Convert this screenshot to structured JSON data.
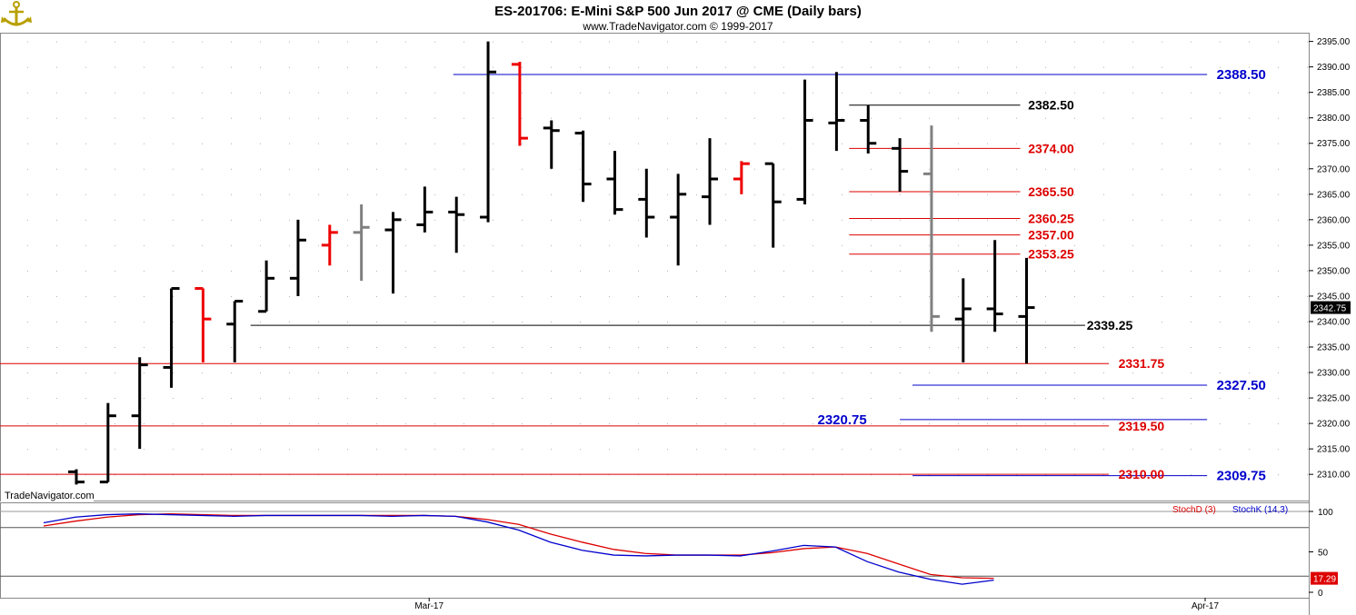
{
  "header": {
    "title": "ES-201706:  E-Mini S&P 500 Jun 2017 @ CME  (Daily bars)",
    "subtitle": "www.TradeNavigator.com © 1999-2017"
  },
  "watermark": "TradeNavigator.com",
  "colors": {
    "up_bar": "#000000",
    "down_bar": "#ee0000",
    "neutral_bar": "#808080",
    "red_level": "#dd0000",
    "blue_level": "#0000cc",
    "black_level": "#000000",
    "stoch_d": "#dd0000",
    "stoch_k": "#0000cc",
    "last_price_bg": "#000000",
    "stoch_value_bg": "#dd0000"
  },
  "price_axis": {
    "min": 2307,
    "max": 2396,
    "ticks": [
      "2395.00",
      "2390.00",
      "2385.00",
      "2380.00",
      "2375.00",
      "2370.00",
      "2365.00",
      "2360.00",
      "2355.00",
      "2350.00",
      "2345.00",
      "2340.00",
      "2335.00",
      "2330.00",
      "2325.00",
      "2320.00",
      "2315.00",
      "2310.00"
    ],
    "last_price_label": "2342.75"
  },
  "date_axis": {
    "labels": [
      {
        "text": "Mar-17",
        "bar": 12.0
      },
      {
        "text": "Apr-17",
        "bar": 36.5
      }
    ]
  },
  "annotations": [
    {
      "label": "2388.50",
      "price": 2388.5,
      "color": "blue",
      "from_bar": 11.9,
      "to_bar": 35.7,
      "label_bar": 36.0,
      "big": true
    },
    {
      "label": "2382.50",
      "price": 2382.5,
      "color": "black",
      "from_bar": 24.4,
      "to_bar": 29.8,
      "label_bar": 30.05,
      "big": false
    },
    {
      "label": "2374.00",
      "price": 2374.0,
      "color": "red",
      "from_bar": 24.4,
      "to_bar": 29.8,
      "label_bar": 30.05,
      "big": false
    },
    {
      "label": "2365.50",
      "price": 2365.5,
      "color": "red",
      "from_bar": 24.4,
      "to_bar": 29.8,
      "label_bar": 30.05,
      "big": false
    },
    {
      "label": "2360.25",
      "price": 2360.25,
      "color": "red",
      "from_bar": 24.4,
      "to_bar": 29.8,
      "label_bar": 30.05,
      "big": false
    },
    {
      "label": "2357.00",
      "price": 2357.0,
      "color": "red",
      "from_bar": 24.4,
      "to_bar": 29.8,
      "label_bar": 30.05,
      "big": false
    },
    {
      "label": "2353.25",
      "price": 2353.25,
      "color": "red",
      "from_bar": 24.4,
      "to_bar": 29.8,
      "label_bar": 30.05,
      "big": false
    },
    {
      "label": "2339.25",
      "price": 2339.25,
      "color": "black",
      "from_bar": 5.5,
      "to_bar": 31.85,
      "label_bar": 31.9,
      "big": false
    },
    {
      "label": "2331.75",
      "price": 2331.75,
      "color": "red",
      "from_bar": -2.6,
      "to_bar": 32.6,
      "label_bar": 32.9,
      "big": false
    },
    {
      "label": "2327.50",
      "price": 2327.5,
      "color": "blue",
      "from_bar": 26.4,
      "to_bar": 35.7,
      "label_bar": 36.0,
      "big": true
    },
    {
      "label": "2320.75",
      "price": 2320.75,
      "color": "blue",
      "from_bar": 26.0,
      "to_bar": 35.7,
      "label_bar": 23.4,
      "big": true
    },
    {
      "label": "2319.50",
      "price": 2319.5,
      "color": "red",
      "from_bar": -2.6,
      "to_bar": 32.6,
      "label_bar": 32.9,
      "big": false
    },
    {
      "label": "2310.00",
      "price": 2310.0,
      "color": "red",
      "from_bar": -2.6,
      "to_bar": 32.6,
      "label_bar": 32.9,
      "big": false
    },
    {
      "label": "2309.75",
      "price": 2309.75,
      "color": "blue",
      "from_bar": 26.4,
      "to_bar": 35.7,
      "label_bar": 36.0,
      "big": true
    }
  ],
  "chart_data": {
    "type": "ohlc",
    "title": "ES-201706:  E-Mini S&P 500 Jun 2017 @ CME  (Daily bars)",
    "bars": [
      {
        "o": 2310.5,
        "h": 2311.0,
        "l": 2308.0,
        "c": 2308.5,
        "color": "up"
      },
      {
        "o": 2308.5,
        "h": 2324.0,
        "l": 2308.5,
        "c": 2321.5,
        "color": "up"
      },
      {
        "o": 2321.5,
        "h": 2333.0,
        "l": 2315.0,
        "c": 2331.5,
        "color": "up"
      },
      {
        "o": 2331.0,
        "h": 2346.5,
        "l": 2327.0,
        "c": 2346.5,
        "color": "up"
      },
      {
        "o": 2346.5,
        "h": 2346.5,
        "l": 2332.0,
        "c": 2340.5,
        "color": "down"
      },
      {
        "o": 2339.5,
        "h": 2344.0,
        "l": 2332.0,
        "c": 2344.0,
        "color": "up"
      },
      {
        "o": 2342.0,
        "h": 2352.0,
        "l": 2342.0,
        "c": 2348.5,
        "color": "up"
      },
      {
        "o": 2348.5,
        "h": 2360.0,
        "l": 2345.0,
        "c": 2356.0,
        "color": "up"
      },
      {
        "o": 2355.0,
        "h": 2359.0,
        "l": 2351.0,
        "c": 2357.5,
        "color": "down"
      },
      {
        "o": 2357.5,
        "h": 2363.0,
        "l": 2348.0,
        "c": 2358.5,
        "color": "neutral"
      },
      {
        "o": 2358.0,
        "h": 2361.5,
        "l": 2345.5,
        "c": 2360.0,
        "color": "up"
      },
      {
        "o": 2359.0,
        "h": 2366.5,
        "l": 2357.5,
        "c": 2361.5,
        "color": "up"
      },
      {
        "o": 2361.5,
        "h": 2364.5,
        "l": 2353.5,
        "c": 2361.0,
        "color": "up"
      },
      {
        "o": 2360.5,
        "h": 2395.0,
        "l": 2359.5,
        "c": 2389.0,
        "color": "up"
      },
      {
        "o": 2390.5,
        "h": 2391.0,
        "l": 2374.5,
        "c": 2376.0,
        "color": "down"
      },
      {
        "o": 2378.0,
        "h": 2379.5,
        "l": 2370.0,
        "c": 2377.5,
        "color": "up"
      },
      {
        "o": 2377.0,
        "h": 2377.5,
        "l": 2363.5,
        "c": 2367.0,
        "color": "up"
      },
      {
        "o": 2368.0,
        "h": 2373.5,
        "l": 2361.0,
        "c": 2362.0,
        "color": "up"
      },
      {
        "o": 2364.0,
        "h": 2370.0,
        "l": 2356.5,
        "c": 2360.5,
        "color": "up"
      },
      {
        "o": 2360.5,
        "h": 2369.0,
        "l": 2351.0,
        "c": 2365.0,
        "color": "up"
      },
      {
        "o": 2364.5,
        "h": 2376.0,
        "l": 2359.0,
        "c": 2368.0,
        "color": "up"
      },
      {
        "o": 2368.0,
        "h": 2371.5,
        "l": 2365.0,
        "c": 2371.0,
        "color": "down"
      },
      {
        "o": 2371.0,
        "h": 2371.0,
        "l": 2354.5,
        "c": 2363.5,
        "color": "up"
      },
      {
        "o": 2364.0,
        "h": 2387.5,
        "l": 2363.0,
        "c": 2379.5,
        "color": "up"
      },
      {
        "o": 2379.0,
        "h": 2389.0,
        "l": 2373.5,
        "c": 2379.5,
        "color": "up"
      },
      {
        "o": 2379.5,
        "h": 2382.5,
        "l": 2373.0,
        "c": 2375.0,
        "color": "up"
      },
      {
        "o": 2374.0,
        "h": 2376.0,
        "l": 2365.5,
        "c": 2369.5,
        "color": "up"
      },
      {
        "o": 2369.0,
        "h": 2378.5,
        "l": 2338.0,
        "c": 2341.0,
        "color": "neutral"
      },
      {
        "o": 2340.5,
        "h": 2348.5,
        "l": 2332.0,
        "c": 2342.5,
        "color": "up"
      },
      {
        "o": 2342.5,
        "h": 2356.0,
        "l": 2338.0,
        "c": 2341.5,
        "color": "up"
      },
      {
        "o": 2341.0,
        "h": 2352.5,
        "l": 2331.75,
        "c": 2342.75,
        "color": "up"
      }
    ],
    "oscillator": {
      "ticks": [
        "100",
        "50",
        "0"
      ],
      "current_value_label": "17.29",
      "legend": [
        {
          "name": "StochD (3)",
          "color": "#dd0000"
        },
        {
          "name": "StochK (14,3)",
          "color": "#0000cc"
        }
      ],
      "series": [
        {
          "name": "StochD (3)",
          "values": [
            82,
            88,
            93,
            96,
            97,
            96,
            95,
            95,
            95,
            95,
            95,
            95,
            95,
            94,
            90,
            84,
            72,
            62,
            53,
            48,
            46,
            46,
            46,
            49,
            54,
            56,
            48,
            35,
            22,
            18,
            17.29
          ]
        },
        {
          "name": "StochK (14,3)",
          "values": [
            86,
            93,
            96,
            97,
            96,
            95,
            94,
            95,
            95,
            95,
            95,
            94,
            95,
            94,
            87,
            77,
            62,
            52,
            46,
            45,
            46,
            46,
            45,
            51,
            58,
            56,
            38,
            25,
            16,
            10,
            15
          ]
        }
      ]
    }
  }
}
